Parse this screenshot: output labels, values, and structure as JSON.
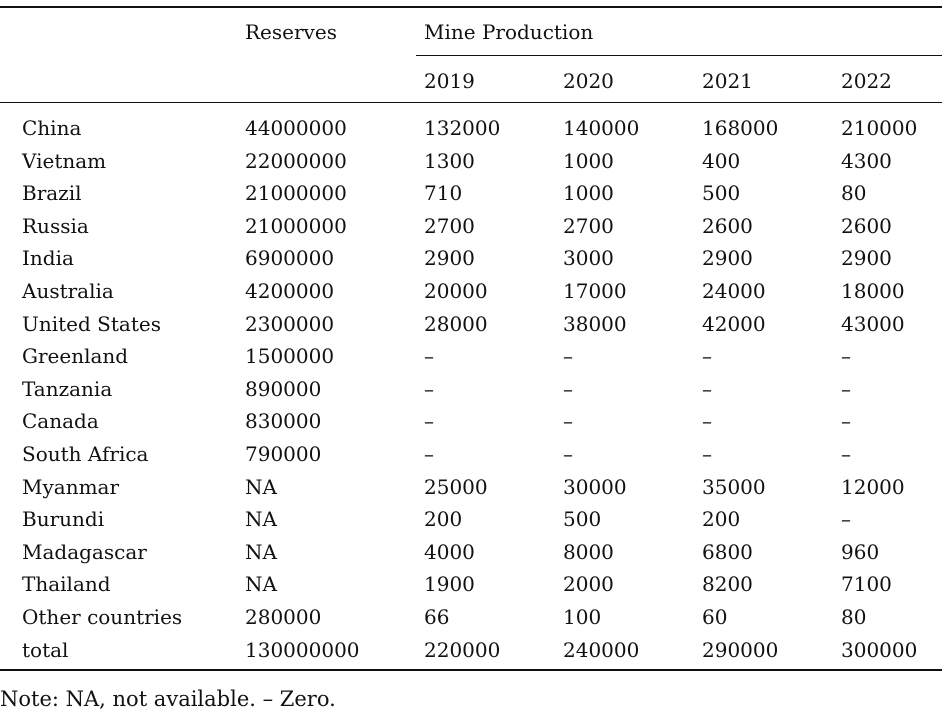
{
  "table": {
    "header": {
      "reserves": "Reserves",
      "mine_production": "Mine Production",
      "years": [
        "2019",
        "2020",
        "2021",
        "2022"
      ]
    },
    "rows": [
      {
        "country": "China",
        "reserves": "44000000",
        "y2019": "132000",
        "y2020": "140000",
        "y2021": "168000",
        "y2022": "210000"
      },
      {
        "country": "Vietnam",
        "reserves": "22000000",
        "y2019": "1300",
        "y2020": "1000",
        "y2021": "400",
        "y2022": "4300"
      },
      {
        "country": "Brazil",
        "reserves": "21000000",
        "y2019": "710",
        "y2020": "1000",
        "y2021": "500",
        "y2022": "80"
      },
      {
        "country": "Russia",
        "reserves": "21000000",
        "y2019": "2700",
        "y2020": "2700",
        "y2021": "2600",
        "y2022": "2600"
      },
      {
        "country": "India",
        "reserves": "6900000",
        "y2019": "2900",
        "y2020": "3000",
        "y2021": "2900",
        "y2022": "2900"
      },
      {
        "country": "Australia",
        "reserves": "4200000",
        "y2019": "20000",
        "y2020": "17000",
        "y2021": "24000",
        "y2022": "18000"
      },
      {
        "country": "United States",
        "reserves": "2300000",
        "y2019": "28000",
        "y2020": "38000",
        "y2021": "42000",
        "y2022": "43000"
      },
      {
        "country": "Greenland",
        "reserves": "1500000",
        "y2019": "–",
        "y2020": "–",
        "y2021": "–",
        "y2022": "–"
      },
      {
        "country": "Tanzania",
        "reserves": "890000",
        "y2019": "–",
        "y2020": "–",
        "y2021": "–",
        "y2022": "–"
      },
      {
        "country": "Canada",
        "reserves": "830000",
        "y2019": "–",
        "y2020": "–",
        "y2021": "–",
        "y2022": "–"
      },
      {
        "country": "South Africa",
        "reserves": "790000",
        "y2019": "–",
        "y2020": "–",
        "y2021": "–",
        "y2022": "–"
      },
      {
        "country": "Myanmar",
        "reserves": "NA",
        "y2019": "25000",
        "y2020": "30000",
        "y2021": "35000",
        "y2022": "12000"
      },
      {
        "country": "Burundi",
        "reserves": "NA",
        "y2019": "200",
        "y2020": "500",
        "y2021": "200",
        "y2022": "–"
      },
      {
        "country": "Madagascar",
        "reserves": "NA",
        "y2019": "4000",
        "y2020": "8000",
        "y2021": "6800",
        "y2022": "960"
      },
      {
        "country": "Thailand",
        "reserves": "NA",
        "y2019": "1900",
        "y2020": "2000",
        "y2021": "8200",
        "y2022": "7100"
      },
      {
        "country": "Other countries",
        "reserves": "280000",
        "y2019": "66",
        "y2020": "100",
        "y2021": "60",
        "y2022": "80"
      },
      {
        "country": "total",
        "reserves": "130000000",
        "y2019": "220000",
        "y2020": "240000",
        "y2021": "290000",
        "y2022": "300000"
      }
    ]
  },
  "note": "Note: NA, not available. – Zero."
}
